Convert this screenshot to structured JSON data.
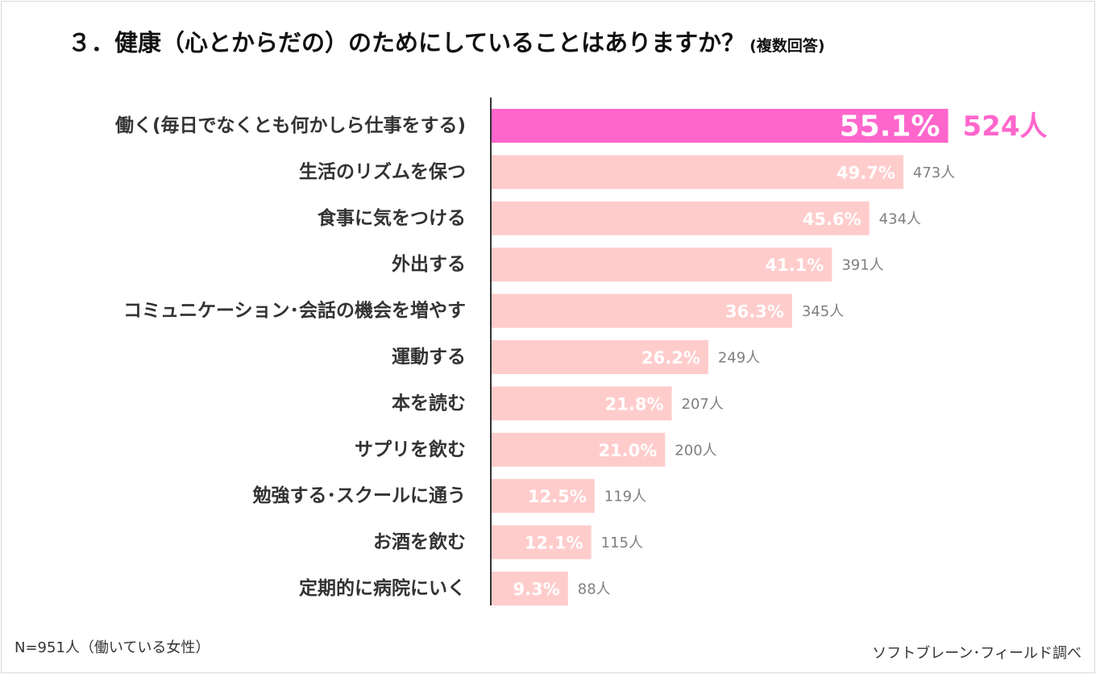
{
  "title": "３．健康（心とからだの）のためにしていることはありますか？",
  "subtitle": "(複数回答)",
  "footnote": "N=951人（働いている女性）",
  "source": "ソフトブレーン･フィールド調べ",
  "colors": {
    "highlight_bar": "#ff66cc",
    "bar": "#ffcccc",
    "highlight_count": "#ff66cc",
    "count": "#7f7f7f",
    "label": "#333333",
    "axis": "#333333"
  },
  "chart_data": {
    "type": "bar",
    "orientation": "horizontal",
    "categories": [
      "働く(毎日でなくとも何かしら仕事をする)",
      "生活のリズムを保つ",
      "食事に気をつける",
      "外出する",
      "コミュニケーション･会話の機会を増やす",
      "運動する",
      "本を読む",
      "サプリを飲む",
      "勉強する･スクールに通う",
      "お酒を飲む",
      "定期的に病院にいく"
    ],
    "values": [
      55.1,
      49.7,
      45.6,
      41.1,
      36.3,
      26.2,
      21.8,
      21.0,
      12.5,
      12.1,
      9.3
    ],
    "value_labels": [
      "55.1%",
      "49.7%",
      "45.6%",
      "41.1%",
      "36.3%",
      "26.2%",
      "21.8%",
      "21.0%",
      "12.5%",
      "12.1%",
      "9.3%"
    ],
    "counts": [
      "524人",
      "473人",
      "434人",
      "391人",
      "345人",
      "249人",
      "207人",
      "200人",
      "119人",
      "115人",
      "88人"
    ],
    "highlight_index": 0,
    "xlim": [
      0,
      100
    ],
    "grid": false,
    "legend": "none"
  }
}
